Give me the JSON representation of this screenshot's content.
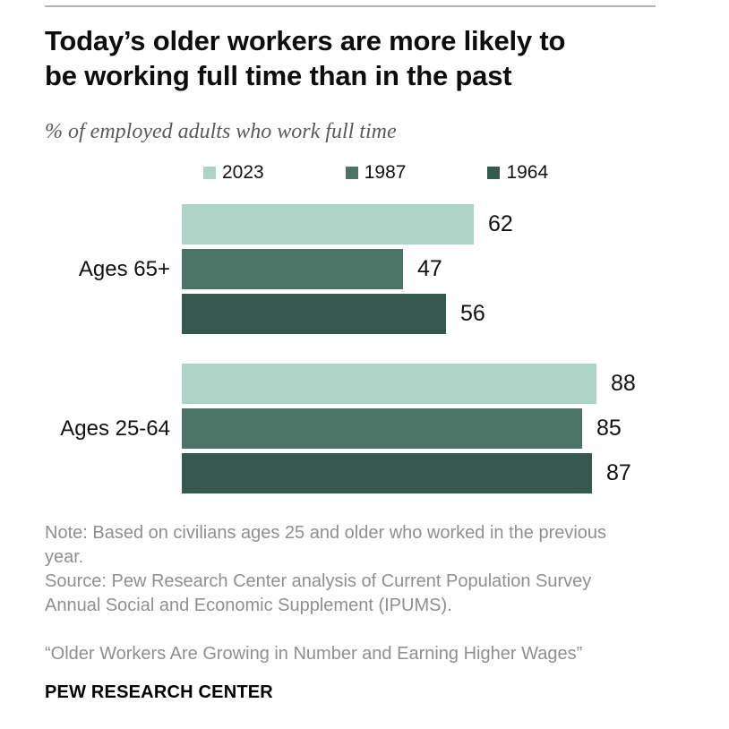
{
  "header": {
    "title_line1": "Today’s older workers are more likely to",
    "title_line2": "be working full time than in the past",
    "subtitle": "% of employed adults who work full time"
  },
  "chart_data": {
    "type": "bar",
    "orientation": "horizontal",
    "title": "Today’s older workers are more likely to be working full time than in the past",
    "subtitle": "% of employed adults who work full time",
    "categories": [
      "Ages 65+",
      "Ages 25-64"
    ],
    "series": [
      {
        "name": "2023",
        "color": "#acd3c6",
        "values": [
          62,
          88
        ]
      },
      {
        "name": "1987",
        "color": "#4b7467",
        "values": [
          47,
          85
        ]
      },
      {
        "name": "1964",
        "color": "#35594e",
        "values": [
          56,
          87
        ]
      }
    ],
    "xlim": [
      0,
      100
    ],
    "value_labels": true,
    "legend_position": "top",
    "grid": false
  },
  "footer": {
    "note": "Note: Based on civilians ages 25 and older who worked in the previous year.",
    "source": "Source: Pew Research Center analysis of Current Population Survey Annual Social and Economic Supplement (IPUMS).",
    "report_title": "“Older Workers Are Growing in Number and Earning Higher Wages”",
    "brand": "PEW RESEARCH CENTER"
  }
}
